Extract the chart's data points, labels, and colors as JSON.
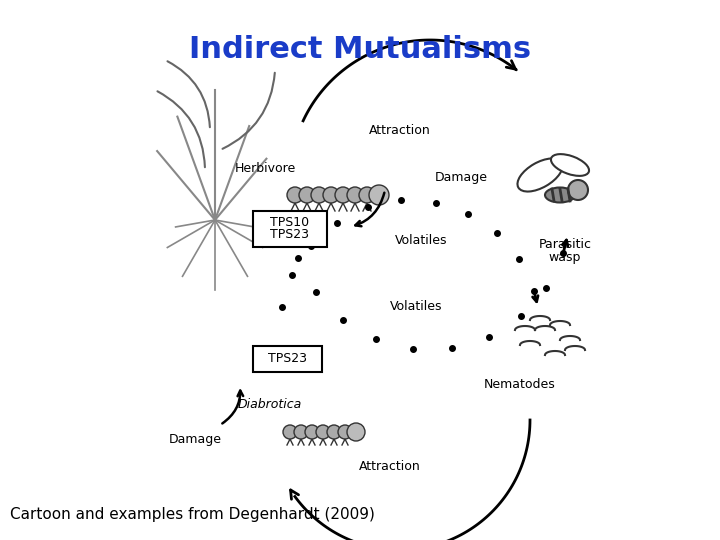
{
  "title": "Indirect Mutualisms",
  "title_color": "#1a3cc8",
  "title_fontsize": 22,
  "title_fontweight": "bold",
  "caption": "Cartoon and examples from Degenhardt (2009)",
  "caption_fontsize": 11,
  "caption_color": "#000000",
  "bg_color": "#ffffff",
  "labels": {
    "herbivore": "Herbivore",
    "attraction_top": "Attraction",
    "damage_top": "Damage",
    "parasitic_wasp": [
      "Parasitic",
      "wasp"
    ],
    "tps10_tps23": [
      "TPS10",
      "TPS23"
    ],
    "volatiles_top": "Volatiles",
    "tps23": "TPS23",
    "volatiles_bottom": "Volatiles",
    "diabrotica": "Diabrotica",
    "damage_bottom": "Damage",
    "attraction_bottom": "Attraction",
    "nematodes": "Nematodes"
  }
}
